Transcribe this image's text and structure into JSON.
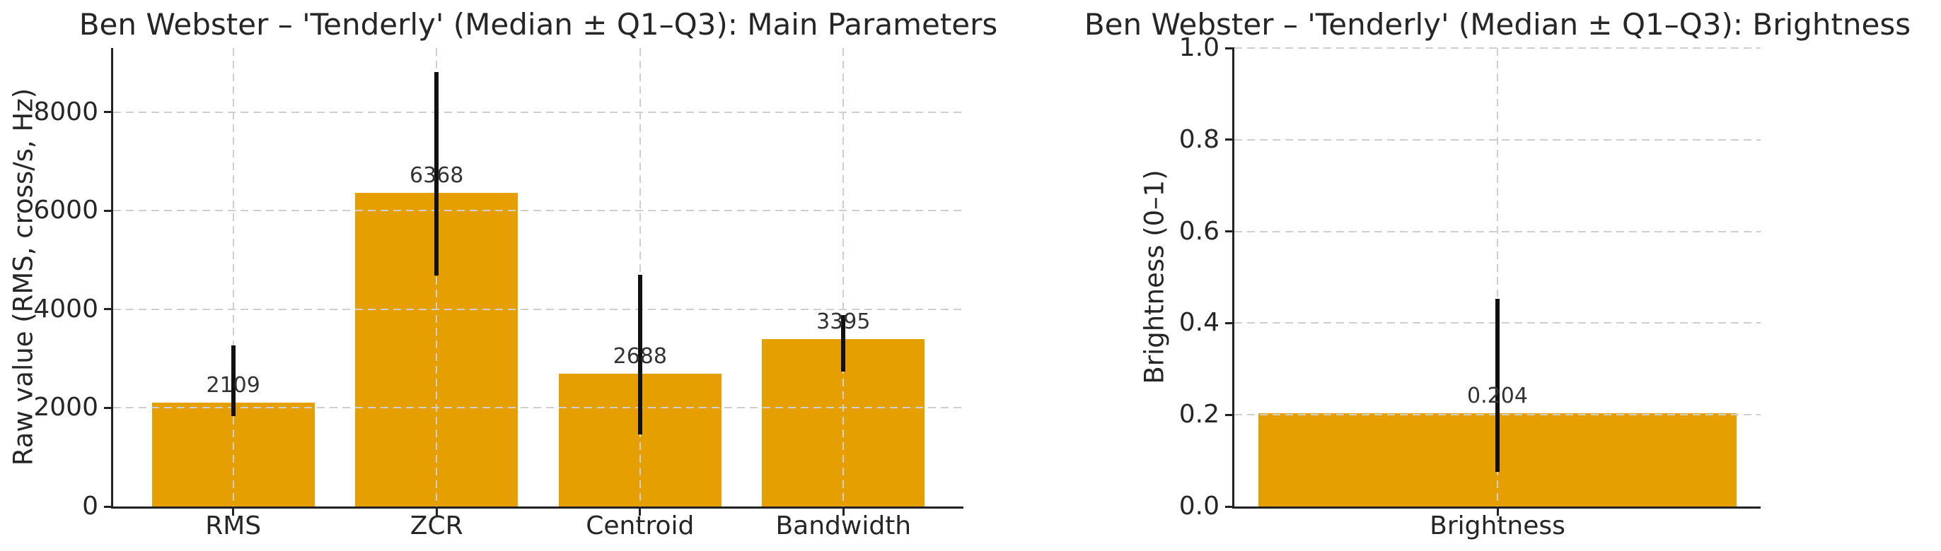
{
  "figure": {
    "background": "#ffffff",
    "bar_color": "#E69F00",
    "grid_color": "#cfcfcf",
    "axis_color": "#222222",
    "errorbar_color": "#111111",
    "text_color": "#262626"
  },
  "chart_data": [
    {
      "type": "bar",
      "title": "Ben Webster – 'Tenderly' (Median ± Q1–Q3): Main Parameters",
      "ylabel": "Raw value (RMS, cross/s, Hz)",
      "categories": [
        "RMS",
        "ZCR",
        "Centroid",
        "Bandwidth"
      ],
      "values": [
        2109,
        6368,
        2688,
        3395
      ],
      "value_labels": [
        "2109",
        "6368",
        "2688",
        "3395"
      ],
      "error_bars_q1_q3": [
        [
          1830,
          3270
        ],
        [
          4690,
          8820
        ],
        [
          1460,
          4700
        ],
        [
          2740,
          3880
        ]
      ],
      "yticks": [
        0,
        2000,
        4000,
        6000,
        8000
      ],
      "ytick_labels": [
        "0",
        "2000",
        "4000",
        "6000",
        "8000"
      ],
      "ylim": [
        0,
        9300
      ],
      "grid": "dashed",
      "legend": "none"
    },
    {
      "type": "bar",
      "title": "Ben Webster – 'Tenderly' (Median ± Q1–Q3): Brightness",
      "ylabel": "Brightness (0–1)",
      "categories": [
        "Brightness"
      ],
      "values": [
        0.204
      ],
      "value_labels": [
        "0.204"
      ],
      "error_bars_q1_q3": [
        [
          0.076,
          0.453
        ]
      ],
      "yticks": [
        0,
        0.2,
        0.4,
        0.6,
        0.8,
        1.0
      ],
      "ytick_labels": [
        "0.0",
        "0.2",
        "0.4",
        "0.6",
        "0.8",
        "1.0"
      ],
      "ylim": [
        0,
        1.0
      ],
      "grid": "dashed",
      "legend": "none"
    }
  ]
}
